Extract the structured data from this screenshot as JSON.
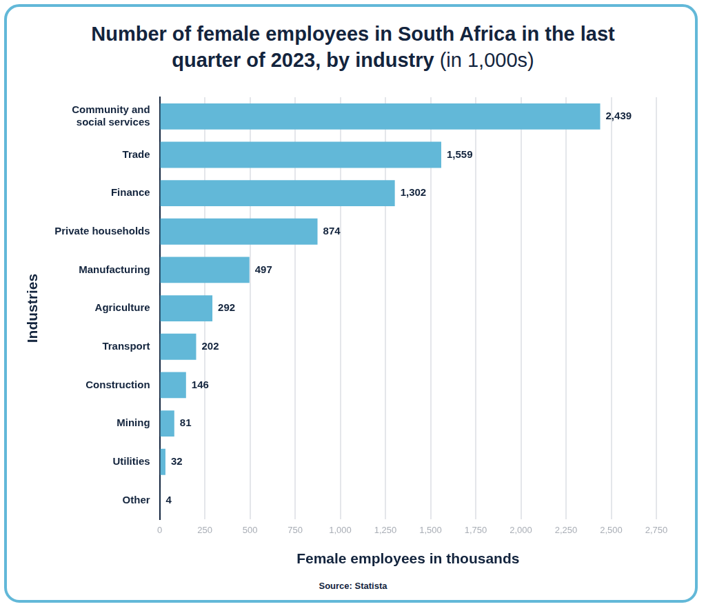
{
  "chart_data": {
    "type": "bar",
    "orientation": "horizontal",
    "title": "Number of female employees in South Africa in the last quarter of 2023, by industry",
    "subtitle": "(in 1,000s)",
    "x_label": "Female employees in thousands",
    "y_label": "Industries",
    "source": "Source: Statista",
    "categories": [
      "Community and\nsocial services",
      "Trade",
      "Finance",
      "Private households",
      "Manufacturing",
      "Agriculture",
      "Transport",
      "Construction",
      "Mining",
      "Utilities",
      "Other"
    ],
    "values": [
      2439,
      1559,
      1302,
      874,
      497,
      292,
      202,
      146,
      81,
      32,
      4
    ],
    "value_labels": [
      "2,439",
      "1,559",
      "1,302",
      "874",
      "497",
      "292",
      "202",
      "146",
      "81",
      "32",
      "4"
    ],
    "color": "#62b8d8",
    "xlim": [
      0,
      2750
    ],
    "xticks": [
      0,
      250,
      500,
      750,
      {
        "value": 1000,
        "label": "1,000"
      },
      {
        "value": 1250,
        "label": "1,250"
      },
      {
        "value": 1500,
        "label": "1,500"
      },
      {
        "value": 1750,
        "label": "1,750"
      },
      {
        "value": 2000,
        "label": "2,000"
      },
      {
        "value": 2250,
        "label": "2,250"
      },
      {
        "value": 2500,
        "label": "2,500"
      },
      {
        "value": 2750,
        "label": "2,750"
      }
    ],
    "grid": true,
    "data_labels": true
  }
}
